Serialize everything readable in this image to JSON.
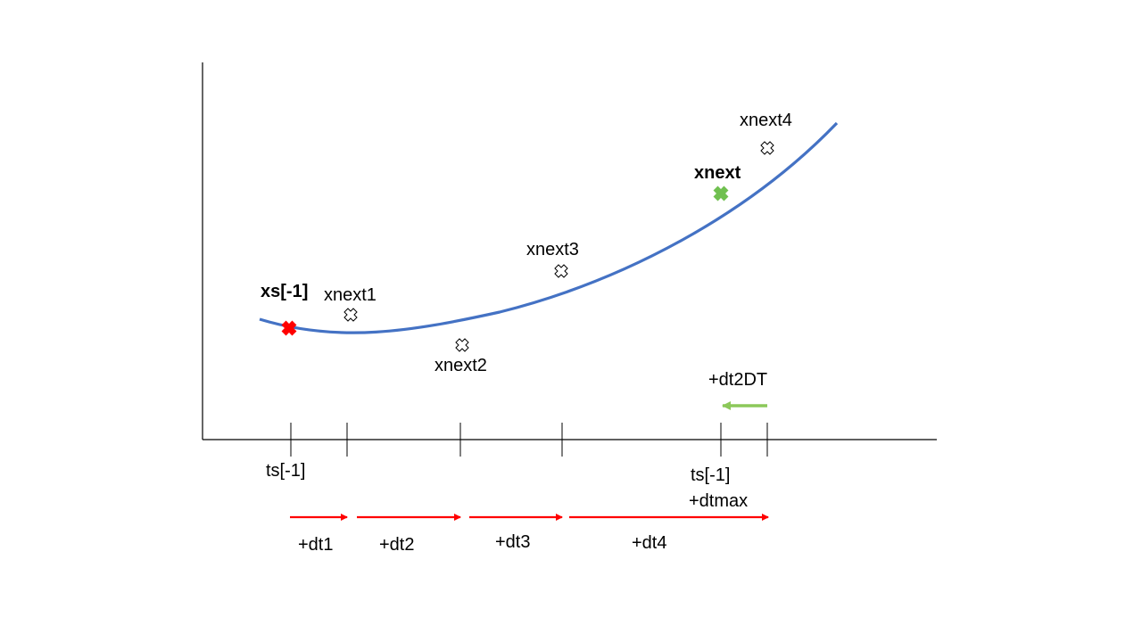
{
  "colors": {
    "curve": "#4472c4",
    "axis": "#000000",
    "start_marker": "#ff0000",
    "accepted_marker": "#70c050",
    "candidate_marker": "#ffffff",
    "step_arrow": "#ff0000",
    "back_arrow": "#8cc85a"
  },
  "points": {
    "start": "xs[-1]",
    "accepted": "xnext",
    "candidates": [
      "xnext1",
      "xnext2",
      "xnext3",
      "xnext4"
    ]
  },
  "time_labels": {
    "start": "ts[-1]",
    "end_line1": "ts[-1]",
    "end_line2": "+dtmax"
  },
  "back_step_label": "+dt2DT",
  "step_labels": [
    "+dt1",
    "+dt2",
    "+dt3",
    "+dt4"
  ]
}
